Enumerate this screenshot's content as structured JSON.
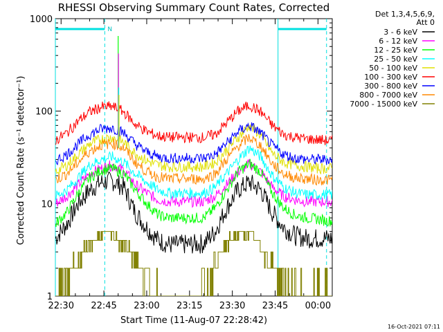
{
  "chart_data": {
    "type": "line",
    "title": "RHESSI Observing Summary Count Rates, Corrected",
    "xlabel": "Start Time (11-Aug-07 22:28:42)",
    "ylabel": "Corrected Count Rate (s⁻¹ detector⁻¹)",
    "ylog": true,
    "ylim": [
      1,
      1000
    ],
    "xlim_minutes": [
      -2,
      95
    ],
    "x_ticks": [
      {
        "t": 0,
        "label": "22:30"
      },
      {
        "t": 15,
        "label": "22:45"
      },
      {
        "t": 30,
        "label": "23:00"
      },
      {
        "t": 45,
        "label": "23:15"
      },
      {
        "t": 60,
        "label": "23:30"
      },
      {
        "t": 75,
        "label": "23:45"
      },
      {
        "t": 90,
        "label": "00:00"
      }
    ],
    "y_ticks": [
      {
        "v": 1,
        "label": "1"
      },
      {
        "v": 10,
        "label": "10"
      },
      {
        "v": 100,
        "label": "100"
      },
      {
        "v": 1000,
        "label": "1000"
      }
    ],
    "legend_header": [
      "Det 1,3,4,5,6,9,",
      "Att 0"
    ],
    "legend_position": "right",
    "night_marks": [
      {
        "t": -2,
        "color": "#00e0e0"
      },
      {
        "t": 15.3,
        "color": "#00e0e0"
      },
      {
        "t": 76,
        "color": "#00e0e0"
      },
      {
        "t": 93,
        "color": "#00e0e0"
      }
    ],
    "day_bars": [
      {
        "t0": -2,
        "t1": 15.3,
        "label": "N"
      },
      {
        "t0": 76,
        "t1": 93,
        "label": ""
      }
    ],
    "timestamp": "16-Oct-2021 07:11",
    "series": [
      {
        "name": "3 - 6 keV",
        "color": "#000000",
        "t": [
          -2,
          2,
          6,
          10,
          14,
          18,
          22,
          26,
          30,
          34,
          38,
          44,
          50,
          54,
          58,
          62,
          66,
          70,
          74,
          78,
          82,
          86,
          90,
          93
        ],
        "v": [
          4.2,
          6,
          10,
          14,
          17,
          17.5,
          15,
          8,
          5.5,
          4,
          3.6,
          3.6,
          3.7,
          5,
          9,
          14,
          17,
          14,
          8,
          5.5,
          4.5,
          4.2,
          4.2,
          4.2
        ]
      },
      {
        "name": "6 - 12 keV",
        "color": "#ff00ff",
        "t": [
          -2,
          2,
          6,
          10,
          14,
          18,
          22,
          26,
          30,
          34,
          38,
          44,
          50,
          54,
          58,
          62,
          66,
          70,
          74,
          78,
          82,
          86,
          90,
          93
        ],
        "v": [
          10,
          12,
          16,
          21,
          24,
          26,
          23,
          16,
          13,
          11,
          10.5,
          10.5,
          10.5,
          12,
          16,
          22,
          27,
          22,
          15,
          12,
          11,
          10.5,
          10.5,
          10.5
        ]
      },
      {
        "name": "12 - 25 keV",
        "color": "#00ff00",
        "t": [
          -2,
          2,
          6,
          10,
          14,
          18,
          22,
          26,
          30,
          34,
          38,
          44,
          50,
          54,
          58,
          62,
          66,
          70,
          74,
          78,
          82,
          86,
          90,
          93
        ],
        "v": [
          6,
          8,
          13,
          19,
          23,
          24,
          21,
          14,
          10,
          7.5,
          7,
          7,
          7,
          9,
          14,
          22,
          27,
          22,
          13,
          9,
          7.5,
          7,
          6.8,
          6.5
        ]
      },
      {
        "name": "25 - 50 keV",
        "color": "#00ffff",
        "t": [
          -2,
          2,
          6,
          10,
          14,
          18,
          22,
          26,
          30,
          34,
          38,
          44,
          50,
          54,
          58,
          62,
          66,
          70,
          74,
          78,
          82,
          86,
          90,
          93
        ],
        "v": [
          12,
          14,
          19,
          26,
          30,
          32,
          28,
          21,
          17,
          14,
          13,
          13,
          13,
          15,
          21,
          30,
          40,
          32,
          20,
          15,
          13,
          12.5,
          12.5,
          12.5
        ]
      },
      {
        "name": "50 - 100 keV",
        "color": "#e0e000",
        "t": [
          -2,
          2,
          6,
          10,
          14,
          18,
          22,
          26,
          30,
          34,
          38,
          44,
          50,
          54,
          58,
          62,
          66,
          70,
          74,
          78,
          82,
          86,
          90,
          93
        ],
        "v": [
          22,
          26,
          34,
          44,
          50,
          52,
          46,
          35,
          29,
          26,
          25,
          25,
          25,
          28,
          38,
          52,
          70,
          55,
          35,
          28,
          26,
          25,
          24,
          24
        ]
      },
      {
        "name": "100 - 300 keV",
        "color": "#ff0000",
        "t": [
          -2,
          2,
          6,
          10,
          14,
          18,
          22,
          26,
          30,
          34,
          38,
          44,
          50,
          54,
          58,
          62,
          66,
          70,
          74,
          78,
          82,
          86,
          90,
          93
        ],
        "v": [
          48,
          58,
          78,
          98,
          110,
          112,
          98,
          72,
          60,
          54,
          52,
          52,
          52,
          56,
          75,
          100,
          116,
          98,
          70,
          56,
          52,
          50,
          49,
          48
        ]
      },
      {
        "name": "300 - 800 keV",
        "color": "#0000ff",
        "t": [
          -2,
          2,
          6,
          10,
          14,
          18,
          22,
          26,
          30,
          34,
          38,
          44,
          50,
          54,
          58,
          62,
          66,
          70,
          74,
          78,
          82,
          86,
          90,
          93
        ],
        "v": [
          29,
          34,
          44,
          56,
          64,
          66,
          58,
          44,
          36,
          32,
          31,
          31,
          31,
          34,
          45,
          60,
          70,
          58,
          42,
          34,
          31,
          30,
          30,
          30
        ]
      },
      {
        "name": "800 - 7000 keV",
        "color": "#ff8800",
        "t": [
          -2,
          2,
          6,
          10,
          14,
          18,
          22,
          26,
          30,
          34,
          38,
          44,
          50,
          54,
          58,
          62,
          66,
          70,
          74,
          78,
          82,
          86,
          90,
          93
        ],
        "v": [
          18,
          21,
          28,
          37,
          43,
          45,
          40,
          28,
          22,
          19.5,
          18.5,
          18.5,
          18.5,
          21,
          30,
          42,
          52,
          42,
          27,
          21,
          19,
          18.5,
          18,
          18
        ]
      },
      {
        "name": "7000 - 15000 keV",
        "color": "#808000",
        "t": [
          -2,
          1,
          4,
          8,
          12,
          15,
          18,
          21,
          24,
          28,
          31,
          34,
          40,
          46,
          50,
          53,
          56,
          59,
          62,
          65,
          68,
          71,
          74,
          78,
          82,
          86,
          90,
          93
        ],
        "v": [
          1,
          1.4,
          2,
          3,
          4,
          4.8,
          4.5,
          3.8,
          3,
          2,
          1.4,
          1,
          1,
          1,
          1.3,
          2,
          3,
          4,
          4.8,
          4.8,
          4,
          3,
          2,
          1.3,
          1,
          1,
          1,
          1
        ]
      }
    ],
    "spikes": [
      {
        "t": 20.0,
        "v": 650,
        "color": "#00ff00"
      },
      {
        "t": 20.1,
        "v": 420,
        "color": "#ff00ff"
      },
      {
        "t": 20.2,
        "v": 180,
        "color": "#00ffff"
      },
      {
        "t": 20.3,
        "v": 150,
        "color": "#e0e000"
      }
    ]
  }
}
